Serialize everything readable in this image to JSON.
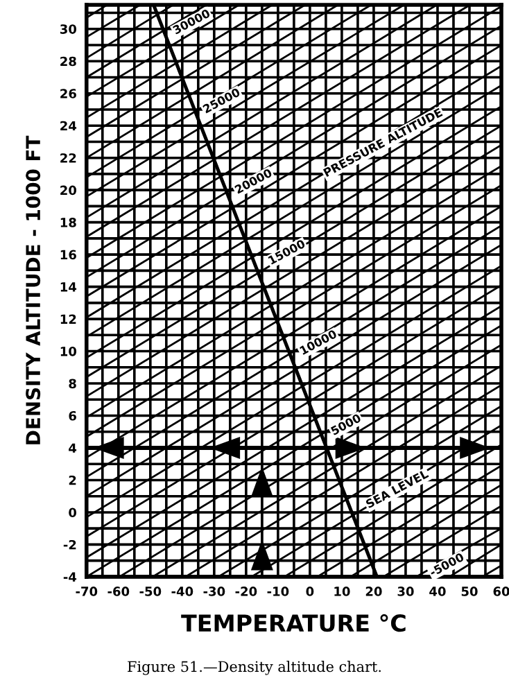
{
  "chart_data": {
    "type": "line",
    "xlabel": "TEMPERATURE °C",
    "ylabel": "DENSITY ALTITUDE - 1000 FT",
    "annotations": [
      {
        "text": "30000",
        "x": -37,
        "y": 30.4
      },
      {
        "text": "25000",
        "x": -27.6,
        "y": 25.5
      },
      {
        "text": "20000",
        "x": -17.6,
        "y": 20.5
      },
      {
        "text": "15000",
        "x": -7.2,
        "y": 16.1
      },
      {
        "text": "10000",
        "x": 2.7,
        "y": 10.5
      },
      {
        "text": "5000",
        "x": 11.4,
        "y": 5.4
      },
      {
        "text": "SEA LEVEL",
        "x": 27.4,
        "y": 1.4
      },
      {
        "text": "-5000",
        "x": 43,
        "y": -3.3
      },
      {
        "text": "PRESSURE ALTITUDE",
        "x": 23,
        "y": 22.9
      },
      "Figure 51.—Density altitude chart."
    ],
    "xlim": [
      -70,
      60
    ],
    "ylim": [
      -4,
      31.5
    ],
    "xticks": [
      -70,
      {
        "value": -65,
        "label": null
      },
      -60,
      {
        "value": -55,
        "label": null
      },
      -50,
      {
        "value": -45,
        "label": null
      },
      -40,
      {
        "value": -35,
        "label": null
      },
      -30,
      {
        "value": -25,
        "label": null
      },
      -20,
      {
        "value": -15,
        "label": null
      },
      -10,
      {
        "value": -5,
        "label": null
      },
      0,
      {
        "value": 5,
        "label": null
      },
      10,
      {
        "value": 15,
        "label": null
      },
      20,
      {
        "value": 25,
        "label": null
      },
      30,
      {
        "value": 35,
        "label": null
      },
      40,
      {
        "value": 45,
        "label": null
      },
      50,
      {
        "value": 55,
        "label": null
      },
      60
    ],
    "yticks": [
      -4,
      {
        "value": -3,
        "label": null
      },
      -2,
      {
        "value": -1,
        "label": null
      },
      0,
      {
        "value": 1,
        "label": null
      },
      2,
      {
        "value": 3,
        "label": null
      },
      4,
      {
        "value": 5,
        "label": null
      },
      6,
      {
        "value": 7,
        "label": null
      },
      8,
      {
        "value": 9,
        "label": null
      },
      10,
      {
        "value": 11,
        "label": null
      },
      12,
      {
        "value": 13,
        "label": null
      },
      14,
      {
        "value": 15,
        "label": null
      },
      16,
      {
        "value": 17,
        "label": null
      },
      18,
      {
        "value": 19,
        "label": null
      },
      20,
      {
        "value": 21,
        "label": null
      },
      22,
      {
        "value": 23,
        "label": null
      },
      24,
      {
        "value": 25,
        "label": null
      },
      26,
      {
        "value": 27,
        "label": null
      },
      28,
      {
        "value": 29,
        "label": null
      },
      30,
      {
        "value": 31,
        "label": null
      }
    ],
    "grid": true,
    "line_style": "solid",
    "ref_lines": [
      {
        "axis": "y",
        "value": 4,
        "color": "#000000"
      }
    ],
    "series": [
      {
        "color": "#000000",
        "x": [
          21,
          -49
        ],
        "values": [
          -4,
          31.5
        ]
      },
      {
        "color": "#000000",
        "x": [
          54,
          60
        ],
        "values": [
          -4,
          -3.3
        ]
      },
      {
        "color": "#000000",
        "x": [
          43.7,
          60
        ],
        "values": [
          -4,
          -2
        ]
      },
      {
        "color": "#000000",
        "x": [
          33.3,
          60
        ],
        "values": [
          -4,
          -1
        ]
      },
      {
        "color": "#000000",
        "x": [
          23,
          60
        ],
        "values": [
          -4,
          0.4
        ]
      },
      {
        "color": "#000000",
        "x": [
          12.7,
          60
        ],
        "values": [
          -4,
          1.7
        ]
      },
      {
        "color": "#000000",
        "x": [
          2.3,
          60
        ],
        "values": [
          -4,
          2.9
        ]
      },
      {
        "color": "#000000",
        "x": [
          -8,
          60
        ],
        "values": [
          -4,
          4.2
        ]
      },
      {
        "color": "#000000",
        "x": [
          -18.3,
          60
        ],
        "values": [
          -4,
          5.4
        ]
      },
      {
        "color": "#000000",
        "x": [
          -28.7,
          60
        ],
        "values": [
          -4,
          6.6
        ]
      },
      {
        "color": "#000000",
        "x": [
          -39,
          60
        ],
        "values": [
          -4,
          7.9
        ]
      },
      {
        "color": "#000000",
        "x": [
          -49.3,
          60
        ],
        "values": [
          -4,
          9.1
        ]
      },
      {
        "color": "#000000",
        "x": [
          -59.7,
          60
        ],
        "values": [
          -4,
          10.4
        ]
      },
      {
        "color": "#000000",
        "x": [
          -70,
          60
        ],
        "values": [
          -4,
          11.6
        ]
      },
      {
        "color": "#000000",
        "x": [
          -70,
          60
        ],
        "values": [
          -2.8,
          12.8
        ]
      },
      {
        "color": "#000000",
        "x": [
          -70,
          60
        ],
        "values": [
          -1.5,
          14.1
        ]
      },
      {
        "color": "#000000",
        "x": [
          -70,
          60
        ],
        "values": [
          -0.3,
          15.3
        ]
      },
      {
        "color": "#000000",
        "x": [
          -70,
          60
        ],
        "values": [
          1,
          16.6
        ]
      },
      {
        "color": "#000000",
        "x": [
          -70,
          60
        ],
        "values": [
          2.2,
          17.8
        ]
      },
      {
        "color": "#000000",
        "x": [
          -70,
          60
        ],
        "values": [
          3.4,
          19
        ]
      },
      {
        "color": "#000000",
        "x": [
          -70,
          60
        ],
        "values": [
          4.7,
          20.3
        ]
      },
      {
        "color": "#000000",
        "x": [
          -70,
          60
        ],
        "values": [
          5.9,
          21.5
        ]
      },
      {
        "color": "#000000",
        "x": [
          -70,
          60
        ],
        "values": [
          7.2,
          22.8
        ]
      },
      {
        "color": "#000000",
        "x": [
          -70,
          60
        ],
        "values": [
          8.4,
          24
        ]
      },
      {
        "color": "#000000",
        "x": [
          -70,
          60
        ],
        "values": [
          9.6,
          25.2
        ]
      },
      {
        "color": "#000000",
        "x": [
          -70,
          60
        ],
        "values": [
          10.9,
          26.5
        ]
      },
      {
        "color": "#000000",
        "x": [
          -70,
          60
        ],
        "values": [
          12.1,
          27.7
        ]
      },
      {
        "color": "#000000",
        "x": [
          -70,
          60
        ],
        "values": [
          13.4,
          29
        ]
      },
      {
        "color": "#000000",
        "x": [
          -70,
          60
        ],
        "values": [
          14.6,
          30.2
        ]
      },
      {
        "color": "#000000",
        "x": [
          -70,
          60
        ],
        "values": [
          15.8,
          31.4
        ]
      },
      {
        "color": "#000000",
        "x": [
          -70,
          50.2
        ],
        "values": [
          17.1,
          31.5
        ]
      },
      {
        "color": "#000000",
        "x": [
          -70,
          39.8
        ],
        "values": [
          18.3,
          31.5
        ]
      },
      {
        "color": "#000000",
        "x": [
          -70,
          29.5
        ],
        "values": [
          19.6,
          31.5
        ]
      },
      {
        "color": "#000000",
        "x": [
          -70,
          19.2
        ],
        "values": [
          20.8,
          31.5
        ]
      },
      {
        "color": "#000000",
        "x": [
          -70,
          8.8
        ],
        "values": [
          22,
          31.5
        ]
      },
      {
        "color": "#000000",
        "x": [
          -70,
          -1.5
        ],
        "values": [
          23.3,
          31.5
        ]
      },
      {
        "color": "#000000",
        "x": [
          -70,
          -11.8
        ],
        "values": [
          24.5,
          31.5
        ]
      },
      {
        "color": "#000000",
        "x": [
          -70,
          -22.2
        ],
        "values": [
          25.8,
          31.5
        ]
      },
      {
        "color": "#000000",
        "x": [
          -70,
          -32.5
        ],
        "values": [
          27,
          31.5
        ]
      },
      {
        "color": "#000000",
        "x": [
          -70,
          -42.8
        ],
        "values": [
          28.2,
          31.5
        ]
      },
      {
        "color": "#000000",
        "x": [
          -70,
          -53.2
        ],
        "values": [
          29.5,
          31.5
        ]
      },
      {
        "color": "#000000",
        "x": [
          -70,
          -63.5
        ],
        "values": [
          30.7,
          31.5
        ]
      },
      {
        "color": "#000000",
        "x": [
          -15,
          -15
        ],
        "values": [
          -4,
          4
        ]
      }
    ]
  }
}
